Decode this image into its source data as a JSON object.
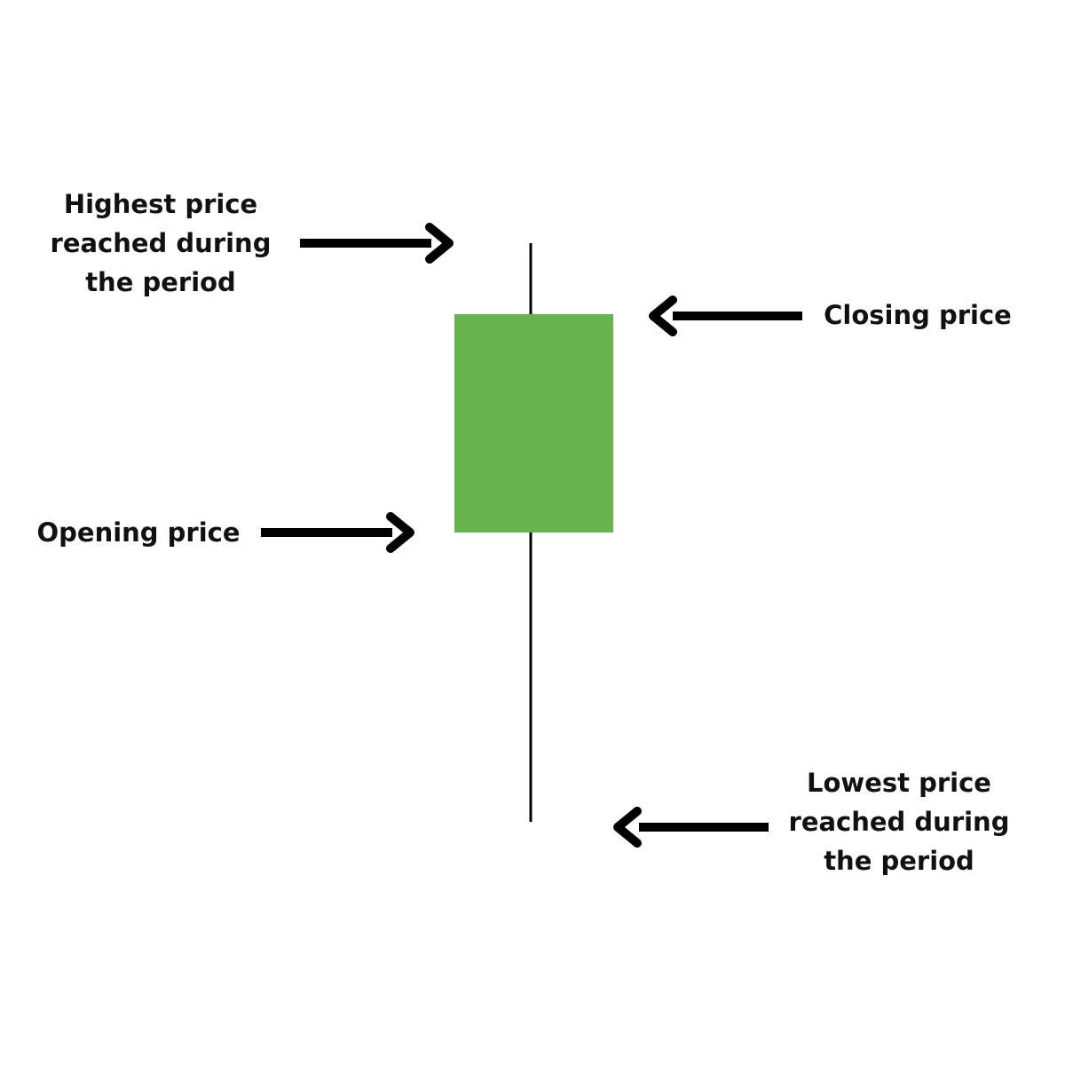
{
  "diagram": {
    "candle_color": "#66b34f",
    "line_color": "#000000",
    "labels": {
      "high": [
        "Highest price",
        "reached during",
        "the period"
      ],
      "open": [
        "Opening price"
      ],
      "close": [
        "Closing price"
      ],
      "low": [
        "Lowest price",
        "reached during",
        "the period"
      ]
    },
    "arrows": [
      {
        "name": "high-arrow-icon",
        "direction": "right"
      },
      {
        "name": "close-arrow-icon",
        "direction": "left"
      },
      {
        "name": "open-arrow-icon",
        "direction": "right"
      },
      {
        "name": "low-arrow-icon",
        "direction": "left"
      }
    ]
  }
}
